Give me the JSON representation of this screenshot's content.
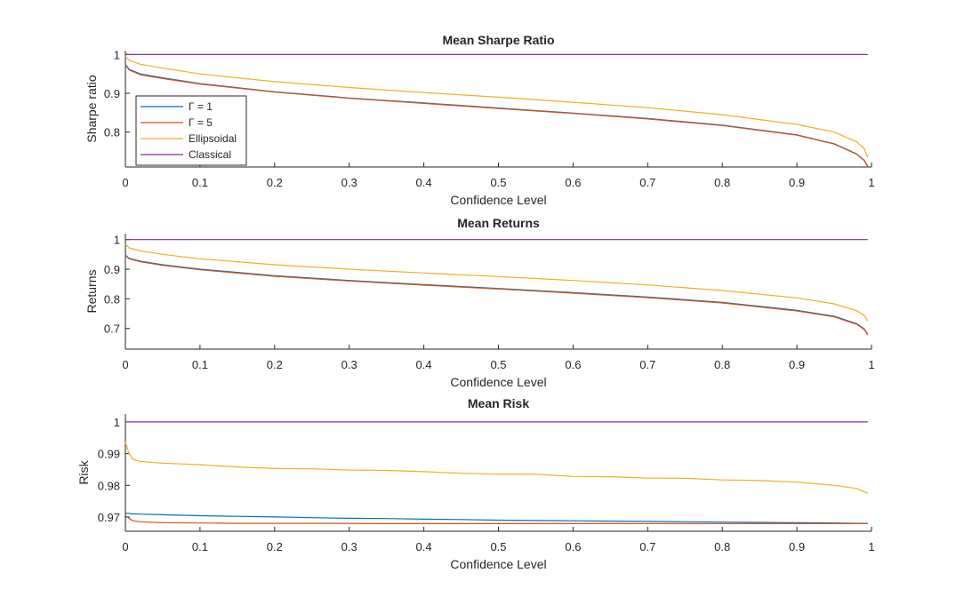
{
  "chart_data": [
    {
      "type": "line",
      "title": "Mean Sharpe Ratio",
      "xlabel": "Confidence Level",
      "ylabel": "Sharpe ratio",
      "xlim": [
        0,
        1
      ],
      "ylim": [
        0.71,
        1.01
      ],
      "xticks": [
        0,
        0.1,
        0.2,
        0.3,
        0.4,
        0.5,
        0.6,
        0.7,
        0.8,
        0.9,
        1
      ],
      "xtick_labels": [
        "0",
        "0.1",
        "0.2",
        "0.3",
        "0.4",
        "0.5",
        "0.6",
        "0.7",
        "0.8",
        "0.9",
        "1"
      ],
      "yticks": [
        0.8,
        0.9,
        1
      ],
      "ytick_labels": [
        "0.8",
        "0.9",
        "1"
      ],
      "grid": false,
      "legend_position": "left",
      "x": [
        0,
        0.005,
        0.02,
        0.05,
        0.1,
        0.2,
        0.3,
        0.4,
        0.5,
        0.6,
        0.7,
        0.8,
        0.9,
        0.95,
        0.98,
        0.99,
        0.995
      ],
      "series": [
        {
          "name": "Γ = 1",
          "values": [
            0.975,
            0.962,
            0.95,
            0.94,
            0.925,
            0.904,
            0.888,
            0.875,
            0.862,
            0.849,
            0.835,
            0.818,
            0.793,
            0.77,
            0.744,
            0.728,
            0.712
          ]
        },
        {
          "name": "Γ = 5",
          "values": [
            0.973,
            0.96,
            0.948,
            0.938,
            0.924,
            0.903,
            0.887,
            0.874,
            0.861,
            0.848,
            0.834,
            0.817,
            0.792,
            0.769,
            0.743,
            0.727,
            0.711
          ]
        },
        {
          "name": "Ellipsoidal",
          "values": [
            0.995,
            0.985,
            0.975,
            0.965,
            0.95,
            0.93,
            0.915,
            0.902,
            0.89,
            0.877,
            0.863,
            0.845,
            0.82,
            0.8,
            0.775,
            0.758,
            0.735
          ]
        },
        {
          "name": "Classical",
          "values": [
            1,
            1,
            1,
            1,
            1,
            1,
            1,
            1,
            1,
            1,
            1,
            1,
            1,
            1,
            1,
            1,
            1
          ]
        }
      ],
      "colors": [
        "#0072BD",
        "#D95319",
        "#EDB120",
        "#7E2F8E"
      ]
    },
    {
      "type": "line",
      "title": "Mean Returns",
      "xlabel": "Confidence Level",
      "ylabel": "Returns",
      "xlim": [
        0,
        1
      ],
      "ylim": [
        0.63,
        1.02
      ],
      "xticks": [
        0,
        0.1,
        0.2,
        0.3,
        0.4,
        0.5,
        0.6,
        0.7,
        0.8,
        0.9,
        1
      ],
      "xtick_labels": [
        "0",
        "0.1",
        "0.2",
        "0.3",
        "0.4",
        "0.5",
        "0.6",
        "0.7",
        "0.8",
        "0.9",
        "1"
      ],
      "yticks": [
        0.7,
        0.8,
        0.9,
        1
      ],
      "ytick_labels": [
        "0.7",
        "0.8",
        "0.9",
        "1"
      ],
      "grid": false,
      "x": [
        0,
        0.005,
        0.02,
        0.05,
        0.1,
        0.2,
        0.3,
        0.4,
        0.5,
        0.6,
        0.7,
        0.8,
        0.9,
        0.95,
        0.98,
        0.99,
        0.995
      ],
      "series": [
        {
          "name": "Γ = 1",
          "values": [
            0.948,
            0.937,
            0.927,
            0.915,
            0.9,
            0.878,
            0.862,
            0.848,
            0.835,
            0.821,
            0.806,
            0.788,
            0.761,
            0.741,
            0.716,
            0.699,
            0.68
          ]
        },
        {
          "name": "Γ = 5",
          "values": [
            0.946,
            0.935,
            0.925,
            0.913,
            0.898,
            0.876,
            0.86,
            0.846,
            0.833,
            0.819,
            0.804,
            0.786,
            0.759,
            0.739,
            0.714,
            0.697,
            0.678
          ]
        },
        {
          "name": "Ellipsoidal",
          "values": [
            0.985,
            0.972,
            0.962,
            0.95,
            0.935,
            0.915,
            0.9,
            0.887,
            0.875,
            0.862,
            0.847,
            0.828,
            0.803,
            0.783,
            0.76,
            0.745,
            0.725
          ]
        },
        {
          "name": "Classical",
          "values": [
            1,
            1,
            1,
            1,
            1,
            1,
            1,
            1,
            1,
            1,
            1,
            1,
            1,
            1,
            1,
            1,
            1
          ]
        }
      ],
      "colors": [
        "#0072BD",
        "#D95319",
        "#EDB120",
        "#7E2F8E"
      ]
    },
    {
      "type": "line",
      "title": "Mean Risk",
      "xlabel": "Confidence Level",
      "ylabel": "Risk",
      "xlim": [
        0,
        1
      ],
      "ylim": [
        0.9655,
        1.0025
      ],
      "xticks": [
        0,
        0.1,
        0.2,
        0.3,
        0.4,
        0.5,
        0.6,
        0.7,
        0.8,
        0.9,
        1
      ],
      "xtick_labels": [
        "0",
        "0.1",
        "0.2",
        "0.3",
        "0.4",
        "0.5",
        "0.6",
        "0.7",
        "0.8",
        "0.9",
        "1"
      ],
      "yticks": [
        0.97,
        0.98,
        0.99,
        1
      ],
      "ytick_labels": [
        "0.97",
        "0.98",
        "0.99",
        "1"
      ],
      "grid": false,
      "x": [
        0,
        0.005,
        0.01,
        0.02,
        0.05,
        0.1,
        0.15,
        0.2,
        0.25,
        0.3,
        0.35,
        0.4,
        0.45,
        0.5,
        0.55,
        0.6,
        0.65,
        0.7,
        0.75,
        0.8,
        0.85,
        0.9,
        0.95,
        0.98,
        0.995
      ],
      "series": [
        {
          "name": "Γ = 1",
          "values": [
            0.9712,
            0.9711,
            0.971,
            0.9709,
            0.9707,
            0.9704,
            0.9702,
            0.97,
            0.9698,
            0.9696,
            0.9695,
            0.9693,
            0.9692,
            0.969,
            0.9689,
            0.9688,
            0.9687,
            0.9686,
            0.9685,
            0.9684,
            0.9683,
            0.9682,
            0.9681,
            0.968,
            0.968
          ]
        },
        {
          "name": "Γ = 5",
          "values": [
            0.9705,
            0.9695,
            0.9688,
            0.9685,
            0.9682,
            0.9681,
            0.968,
            0.968,
            0.968,
            0.968,
            0.9679,
            0.9679,
            0.9679,
            0.9679,
            0.9679,
            0.9679,
            0.9679,
            0.9679,
            0.9679,
            0.9679,
            0.9679,
            0.9679,
            0.9679,
            0.9679,
            0.9679
          ]
        },
        {
          "name": "Ellipsoidal",
          "values": [
            0.9935,
            0.99,
            0.9882,
            0.9875,
            0.987,
            0.9865,
            0.9858,
            0.9853,
            0.9852,
            0.9848,
            0.9847,
            0.9843,
            0.9838,
            0.9835,
            0.9835,
            0.9828,
            0.9827,
            0.9823,
            0.9822,
            0.9817,
            0.9815,
            0.981,
            0.98,
            0.979,
            0.9775
          ]
        },
        {
          "name": "Classical",
          "values": [
            1,
            1,
            1,
            1,
            1,
            1,
            1,
            1,
            1,
            1,
            1,
            1,
            1,
            1,
            1,
            1,
            1,
            1,
            1,
            1,
            1,
            1,
            1,
            1,
            1
          ]
        }
      ],
      "colors": [
        "#0072BD",
        "#D95319",
        "#EDB120",
        "#7E2F8E"
      ]
    }
  ]
}
